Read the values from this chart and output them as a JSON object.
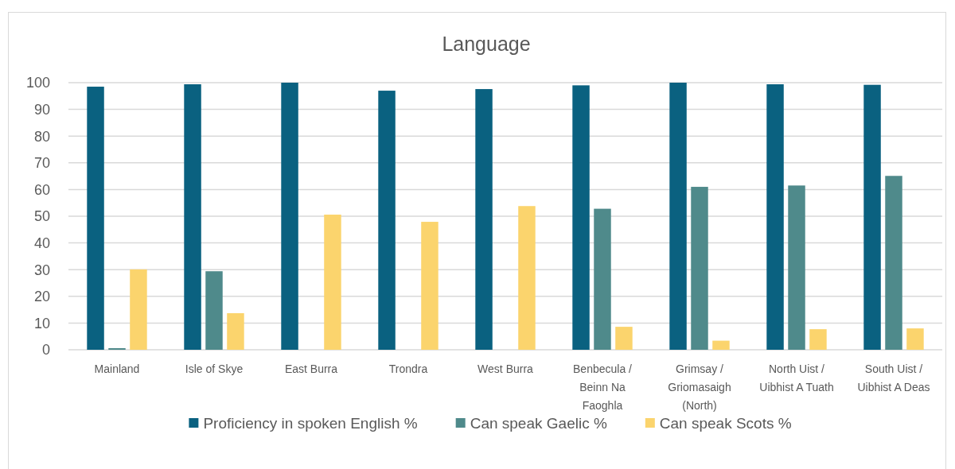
{
  "chart_data": {
    "type": "bar",
    "title": "Language",
    "categories": [
      "Mainland",
      "Isle of Skye",
      "East Burra",
      "Trondra",
      "West Burra",
      "Benbecula / Beinn Na Faoghla",
      "Grimsay / Griomasaigh (North)",
      "North Uist / Uibhist A Tuath",
      "South Uist / Uibhist A Deas"
    ],
    "series": [
      {
        "name": "Proficiency in spoken English %",
        "color": "#0a6180",
        "values": [
          98.5,
          99.4,
          100,
          97.0,
          97.6,
          99.0,
          100,
          99.4,
          99.2
        ]
      },
      {
        "name": "Can speak Gaelic %",
        "color": "#4f8a8b",
        "values": [
          0.6,
          29.4,
          null,
          null,
          null,
          52.8,
          61.0,
          61.5,
          65.1
        ]
      },
      {
        "name": "Can speak Scots %",
        "color": "#fbd46d",
        "values": [
          30.1,
          13.7,
          50.6,
          47.9,
          53.8,
          8.6,
          3.4,
          7.7,
          8.0
        ]
      }
    ],
    "ylim": [
      0,
      100
    ],
    "yticks": [
      0,
      10,
      20,
      30,
      40,
      50,
      60,
      70,
      80,
      90,
      100
    ],
    "grid": "y",
    "legend": "bottom"
  }
}
